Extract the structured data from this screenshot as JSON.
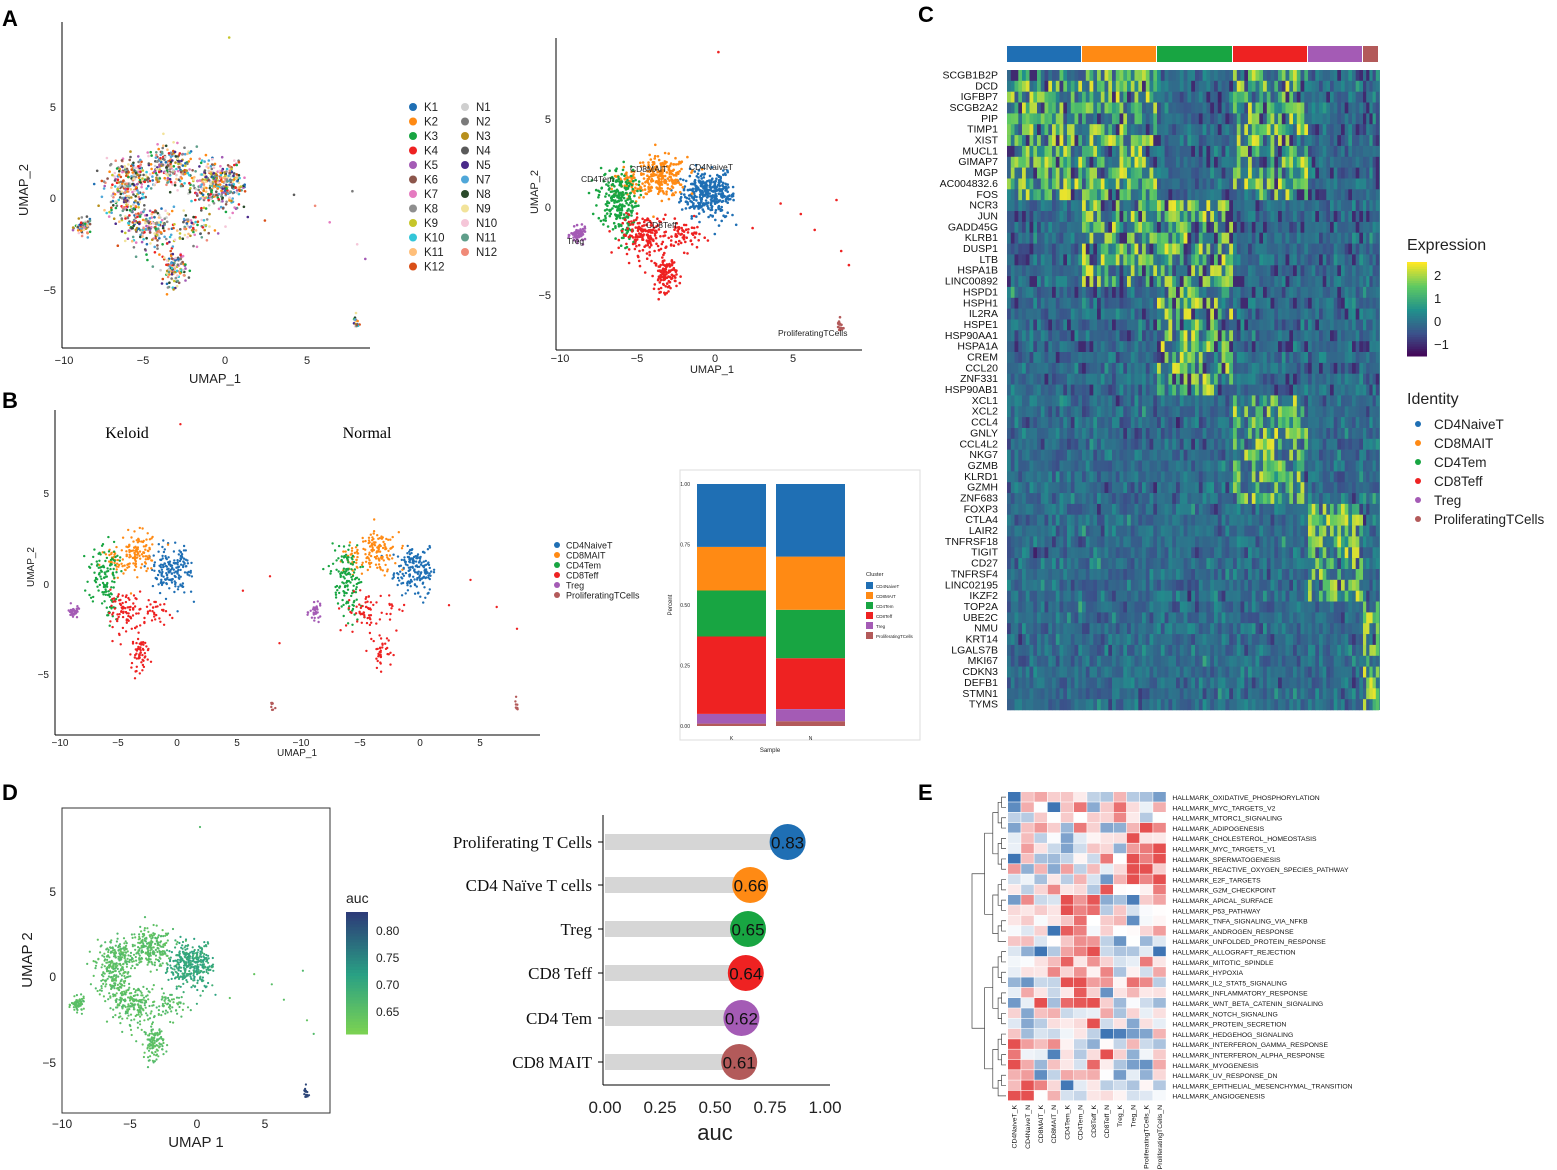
{
  "panel_labels": [
    "A",
    "B",
    "C",
    "D",
    "E"
  ],
  "colors": {
    "CD4NaiveT": "#1f6fb4",
    "CD8MAIT": "#ff8a14",
    "CD4Tem": "#18a542",
    "CD8Teff": "#ee2222",
    "Treg": "#a45bb5",
    "ProliferatingTCells": "#b35a5a",
    "samples": [
      "#1f6fb4",
      "#ff8a14",
      "#18a542",
      "#ee2222",
      "#a45bb5",
      "#8c564b",
      "#e57bc0",
      "#8f8f8f",
      "#c6c62a",
      "#33c6d9",
      "#ffbf7a",
      "#d94f17",
      "#cfcfcf",
      "#7a7a7a",
      "#b8901c",
      "#5a5a5a",
      "#4a2a8a",
      "#4fa7d9",
      "#2a4a2a",
      "#f2e39a",
      "#f5c6d8",
      "#5f9e8a",
      "#f08a78"
    ]
  },
  "chart_data": [
    {
      "type": "scatter",
      "id": "A_left",
      "xlabel": "UMAP_1",
      "ylabel": "UMAP_2",
      "xticks": [
        "−10",
        "−5",
        "0",
        "5"
      ],
      "yticks": [
        "5",
        "0",
        "−5"
      ],
      "xlim": [
        -10.3,
        9.2
      ],
      "ylim": [
        -7.8,
        9.1
      ],
      "legend_k": [
        "K1",
        "K2",
        "K3",
        "K4",
        "K5",
        "K6",
        "K7",
        "K8",
        "K9",
        "K10",
        "K11",
        "K12"
      ],
      "legend_n": [
        "N1",
        "N2",
        "N3",
        "N4",
        "N5",
        "N7",
        "N8",
        "N9",
        "N10",
        "N11",
        "N12"
      ]
    },
    {
      "type": "scatter",
      "id": "A_right",
      "xlabel": "UMAP_1",
      "ylabel": "UMAP_2",
      "xticks": [
        "−10",
        "−5",
        "0",
        "5"
      ],
      "yticks": [
        "5",
        "0",
        "−5"
      ],
      "xlim": [
        -10.3,
        9.2
      ],
      "ylim": [
        -7.8,
        9.1
      ],
      "cluster_labels": [
        "CD4NaiveT",
        "CD8MAIT",
        "CD4Tem",
        "CD8Teff",
        "Treg",
        "ProliferatingTCells"
      ]
    },
    {
      "type": "scatter",
      "id": "B_split",
      "facets": [
        "Keloid",
        "Normal"
      ],
      "xlabel": "UMAP_1",
      "ylabel": "UMAP_2",
      "xticks": [
        "−10",
        "−5",
        "0",
        "5"
      ],
      "yticks": [
        "5",
        "0",
        "−5"
      ],
      "xlim": [
        -10.3,
        9.2
      ],
      "ylim": [
        -7.8,
        9.1
      ],
      "legend": [
        "CD4NaiveT",
        "CD8MAIT",
        "CD4Tem",
        "CD8Teff",
        "Treg",
        "ProliferatingTCells"
      ]
    },
    {
      "type": "bar",
      "id": "B_bar",
      "stacked": true,
      "categories": [
        "K",
        "N"
      ],
      "series": [
        {
          "name": "CD4NaiveT",
          "values": [
            0.26,
            0.3
          ]
        },
        {
          "name": "CD8MAIT",
          "values": [
            0.18,
            0.22
          ]
        },
        {
          "name": "CD4Tem",
          "values": [
            0.19,
            0.2
          ]
        },
        {
          "name": "CD8Teff",
          "values": [
            0.32,
            0.21
          ]
        },
        {
          "name": "Treg",
          "values": [
            0.04,
            0.05
          ]
        },
        {
          "name": "ProliferatingTCells",
          "values": [
            0.01,
            0.02
          ]
        }
      ],
      "xlabel": "Sample",
      "ylabel": "Percent",
      "legend_title": "Cluster",
      "yticks": [
        "0.00",
        "0.25",
        "0.50",
        "0.75",
        "1.00"
      ],
      "ylim": [
        0,
        1
      ]
    },
    {
      "type": "heatmap",
      "id": "C",
      "genes": [
        "SCGB1B2P",
        "DCD",
        "IGFBP7",
        "SCGB2A2",
        "PIP",
        "TIMP1",
        "XIST",
        "MUCL1",
        "GIMAP7",
        "MGP",
        "AC004832.6",
        "FOS",
        "NCR3",
        "JUN",
        "GADD45G",
        "KLRB1",
        "DUSP1",
        "LTB",
        "HSPA1B",
        "LINC00892",
        "HSPD1",
        "HSPH1",
        "IL2RA",
        "HSPE1",
        "HSP90AA1",
        "HSPA1A",
        "CREM",
        "CCL20",
        "ZNF331",
        "HSP90AB1",
        "XCL1",
        "XCL2",
        "CCL4",
        "GNLY",
        "CCL4L2",
        "NKG7",
        "GZMB",
        "KLRD1",
        "GZMH",
        "ZNF683",
        "FOXP3",
        "CTLA4",
        "LAIR2",
        "TNFRSF18",
        "TIGIT",
        "CD27",
        "TNFRSF4",
        "LINC02195",
        "IKZF2",
        "TOP2A",
        "UBE2C",
        "NMU",
        "KRT14",
        "LGALS7B",
        "MKI67",
        "CDKN3",
        "DEFB1",
        "STMN1",
        "TYMS"
      ],
      "groups": [
        "CD4NaiveT",
        "CD8MAIT",
        "CD4Tem",
        "CD8Teff",
        "Treg",
        "ProliferatingTCells"
      ],
      "legend_title": "Expression",
      "scale_ticks": [
        "2",
        "1",
        "0",
        "−1"
      ],
      "scale_range": [
        -1.5,
        2.5
      ],
      "identity_title": "Identity"
    },
    {
      "type": "scatter",
      "id": "D_umap",
      "xlabel": "UMAP 1",
      "ylabel": "UMAP 2",
      "xticks": [
        "−10",
        "−5",
        "0",
        "5"
      ],
      "yticks": [
        "5",
        "0",
        "−5"
      ],
      "legend_title": "auc",
      "scale_ticks": [
        "0.80",
        "0.75",
        "0.70",
        "0.65"
      ],
      "scale_range": [
        0.61,
        0.83
      ]
    },
    {
      "type": "bar",
      "id": "D_lollipop",
      "orientation": "horizontal",
      "categories": [
        "Proliferating T Cells",
        "CD4 Naïve T cells",
        "Treg",
        "CD8 Teff",
        "CD4 Tem",
        "CD8 MAIT"
      ],
      "values": [
        0.83,
        0.66,
        0.65,
        0.64,
        0.62,
        0.61
      ],
      "labels": [
        "0.83",
        "0.66",
        "0.65",
        "0.64",
        "0.62",
        "0.61"
      ],
      "xlabel": "auc",
      "xticks": [
        "0.00",
        "0.25",
        "0.50",
        "0.75",
        "1.00"
      ],
      "xlim": [
        0,
        1
      ]
    },
    {
      "type": "heatmap",
      "id": "E",
      "rows": [
        "HALLMARK_OXIDATIVE_PHOSPHORYLATION",
        "HALLMARK_MYC_TARGETS_V2",
        "HALLMARK_MTORC1_SIGNALING",
        "HALLMARK_ADIPOGENESIS",
        "HALLMARK_CHOLESTEROL_HOMEOSTASIS",
        "HALLMARK_MYC_TARGETS_V1",
        "HALLMARK_SPERMATOGENESIS",
        "HALLMARK_REACTIVE_OXYGEN_SPECIES_PATHWAY",
        "HALLMARK_E2F_TARGETS",
        "HALLMARK_G2M_CHECKPOINT",
        "HALLMARK_APICAL_SURFACE",
        "HALLMARK_P53_PATHWAY",
        "HALLMARK_TNFA_SIGNALING_VIA_NFKB",
        "HALLMARK_ANDROGEN_RESPONSE",
        "HALLMARK_UNFOLDED_PROTEIN_RESPONSE",
        "HALLMARK_ALLOGRAFT_REJECTION",
        "HALLMARK_MITOTIC_SPINDLE",
        "HALLMARK_HYPOXIA",
        "HALLMARK_IL2_STAT5_SIGNALING",
        "HALLMARK_INFLAMMATORY_RESPONSE",
        "HALLMARK_WNT_BETA_CATENIN_SIGNALING",
        "HALLMARK_NOTCH_SIGNALING",
        "HALLMARK_PROTEIN_SECRETION",
        "HALLMARK_HEDGEHOG_SIGNALING",
        "HALLMARK_INTERFERON_GAMMA_RESPONSE",
        "HALLMARK_INTERFERON_ALPHA_RESPONSE",
        "HALLMARK_MYOGENESIS",
        "HALLMARK_UV_RESPONSE_DN",
        "HALLMARK_EPITHELIAL_MESENCHYMAL_TRANSITION",
        "HALLMARK_ANGIOGENESIS"
      ],
      "columns": [
        "CD4NaiveT_K",
        "CD4NaiveT_N",
        "CD8MAIT_K",
        "CD8MAIT_N",
        "CD4Tem_K",
        "CD4Tem_N",
        "CD8Teff_K",
        "CD8Teff_N",
        "Treg_K",
        "Treg_N",
        "ProliferatingTCells_K",
        "ProliferatingTCells_N"
      ]
    }
  ]
}
